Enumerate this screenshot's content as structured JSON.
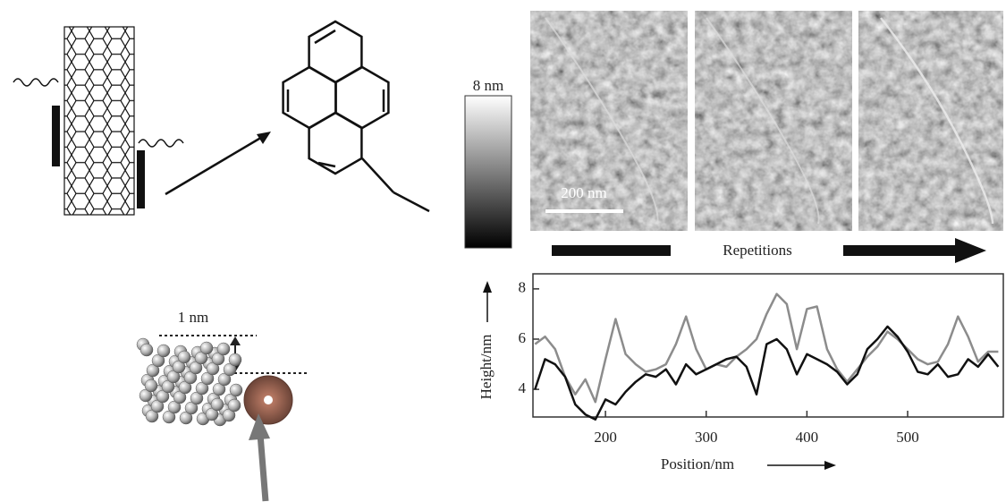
{
  "chart_data": {
    "type": "line",
    "xlabel": "Position/nm",
    "ylabel": "Height/nm",
    "xlim": [
      128,
      595
    ],
    "ylim": [
      2.9,
      8.6
    ],
    "xticks": [
      200,
      300,
      400,
      500
    ],
    "yticks": [
      4,
      6,
      8
    ],
    "x": [
      130,
      140,
      150,
      160,
      170,
      180,
      190,
      200,
      210,
      220,
      230,
      240,
      250,
      260,
      270,
      280,
      290,
      300,
      310,
      320,
      330,
      340,
      350,
      360,
      370,
      380,
      390,
      400,
      410,
      420,
      430,
      440,
      450,
      460,
      470,
      480,
      490,
      500,
      510,
      520,
      530,
      540,
      550,
      560,
      570,
      580,
      590
    ],
    "series": [
      {
        "color": "#8c8c8c",
        "values": [
          5.8,
          6.1,
          5.6,
          4.5,
          3.8,
          4.4,
          3.5,
          5.2,
          6.8,
          5.4,
          5.0,
          4.7,
          4.8,
          5.0,
          5.8,
          6.9,
          5.6,
          4.8,
          5.0,
          4.9,
          5.3,
          5.6,
          6.0,
          7.0,
          7.8,
          7.4,
          5.6,
          7.2,
          7.3,
          5.6,
          4.8,
          4.3,
          4.8,
          5.3,
          5.7,
          6.3,
          6.0,
          5.6,
          5.2,
          5.0,
          5.1,
          5.8,
          6.9,
          6.1,
          5.1,
          5.5,
          5.5
        ]
      },
      {
        "color": "#111111",
        "values": [
          4.0,
          5.2,
          5.0,
          4.5,
          3.4,
          3.0,
          2.8,
          3.6,
          3.4,
          3.9,
          4.3,
          4.6,
          4.5,
          4.8,
          4.2,
          5.0,
          4.6,
          4.8,
          5.0,
          5.2,
          5.3,
          4.9,
          3.8,
          5.8,
          6.0,
          5.6,
          4.6,
          5.4,
          5.2,
          5.0,
          4.7,
          4.2,
          4.6,
          5.6,
          6.0,
          6.5,
          6.1,
          5.5,
          4.7,
          4.6,
          5.0,
          4.5,
          4.6,
          5.2,
          4.9,
          5.4,
          4.9
        ]
      }
    ]
  },
  "labels": {
    "colorbar_max": "8 nm",
    "scale_bar": "200 nm",
    "repetitions": "Repetitions",
    "distance": "1 nm"
  }
}
